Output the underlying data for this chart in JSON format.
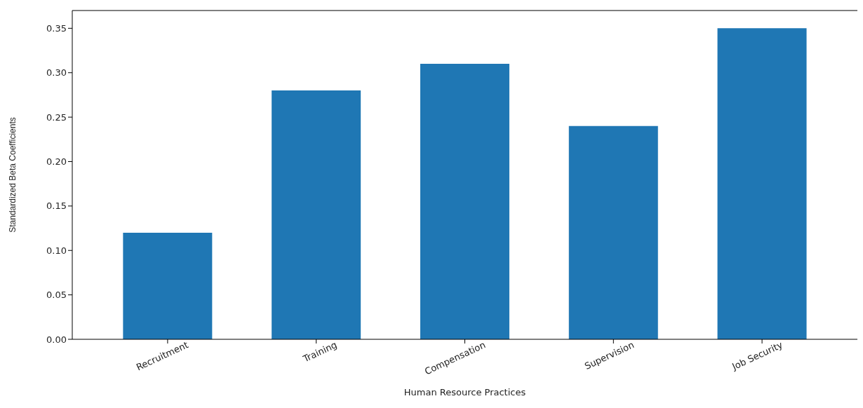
{
  "chart_data": {
    "type": "bar",
    "xlabel": "Human Resource Practices",
    "ylabel": "Standardized Beta Coefficients",
    "categories": [
      "Recruitment",
      "Training",
      "Compensation",
      "Supervision",
      "Job Security"
    ],
    "values": [
      0.12,
      0.28,
      0.31,
      0.24,
      0.35
    ],
    "color": "#1f77b4",
    "ylim": [
      0,
      0.37
    ],
    "yticks": [
      {
        "value": 0,
        "label": "0.00"
      },
      {
        "value": 0.05,
        "label": "0.05"
      },
      {
        "value": 0.1,
        "label": "0.10"
      },
      {
        "value": 0.15,
        "label": "0.15"
      },
      {
        "value": 0.2,
        "label": "0.20"
      },
      {
        "value": 0.25,
        "label": "0.25"
      },
      {
        "value": 0.3,
        "label": "0.30"
      },
      {
        "value": 0.35,
        "label": "0.35"
      }
    ],
    "grid": false,
    "legend": false
  }
}
